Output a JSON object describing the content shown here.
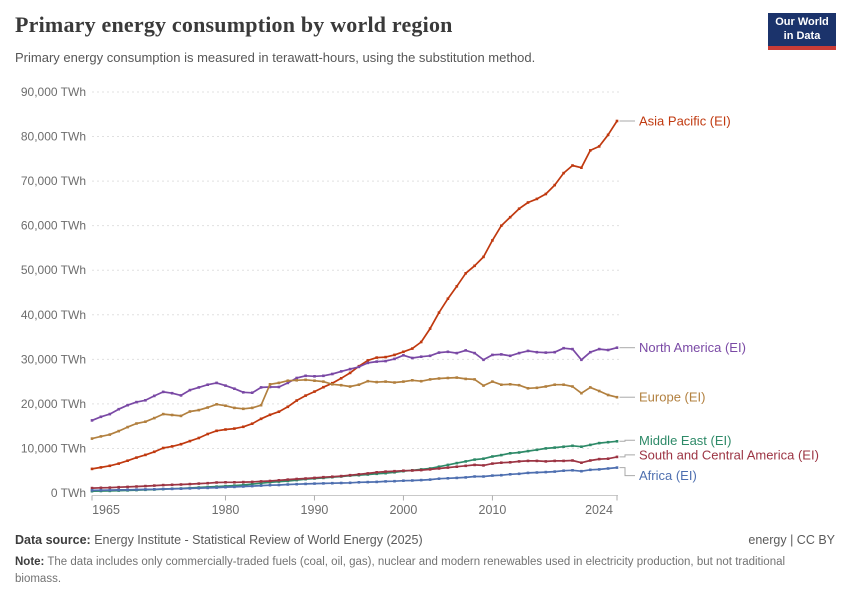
{
  "header": {
    "title": "Primary energy consumption by world region",
    "subtitle": "Primary energy consumption is measured in terawatt-hours, using the substitution method.",
    "logo_line1": "Our World",
    "logo_line2": "in Data",
    "logo_bg_color": "#1b336b",
    "logo_bar_color": "#c93c37"
  },
  "chart_data": {
    "type": "line",
    "title": "Primary energy consumption by world region",
    "unit": "TWh",
    "xlim": [
      1965,
      2024
    ],
    "ylim": [
      0,
      90000
    ],
    "grid": "dashed horizontal gridlines",
    "legend_position": "right of line ends",
    "xticks": [
      1965,
      1980,
      1990,
      2000,
      2010,
      2024
    ],
    "yticks": [
      0,
      10000,
      20000,
      30000,
      40000,
      50000,
      60000,
      70000,
      80000,
      90000
    ],
    "ytick_labels": [
      "0 TWh",
      "10,000 TWh",
      "20,000 TWh",
      "30,000 TWh",
      "40,000 TWh",
      "50,000 TWh",
      "60,000 TWh",
      "70,000 TWh",
      "80,000 TWh",
      "90,000 TWh"
    ],
    "years": [
      1965,
      1966,
      1967,
      1968,
      1969,
      1970,
      1971,
      1972,
      1973,
      1974,
      1975,
      1976,
      1977,
      1978,
      1979,
      1980,
      1981,
      1982,
      1983,
      1984,
      1985,
      1986,
      1987,
      1988,
      1989,
      1990,
      1991,
      1992,
      1993,
      1994,
      1995,
      1996,
      1997,
      1998,
      1999,
      2000,
      2001,
      2002,
      2003,
      2004,
      2005,
      2006,
      2007,
      2008,
      2009,
      2010,
      2011,
      2012,
      2013,
      2014,
      2015,
      2016,
      2017,
      2018,
      2019,
      2020,
      2021,
      2022,
      2023,
      2024
    ],
    "series": [
      {
        "name": "Asia Pacific (EI)",
        "color": "#C0390F",
        "label_dy": 0,
        "values": [
          5400,
          5750,
          6100,
          6600,
          7250,
          7950,
          8550,
          9250,
          10100,
          10450,
          10950,
          11650,
          12350,
          13250,
          13950,
          14250,
          14450,
          14850,
          15550,
          16650,
          17550,
          18250,
          19350,
          20750,
          21850,
          22750,
          23750,
          24650,
          25750,
          26950,
          28450,
          29750,
          30400,
          30500,
          31000,
          31700,
          32400,
          33900,
          36900,
          40500,
          43600,
          46400,
          49300,
          51000,
          53000,
          56700,
          60000,
          61900,
          63800,
          65200,
          66000,
          67100,
          69100,
          71800,
          73500,
          73000,
          76900,
          77800,
          80400,
          83500
        ]
      },
      {
        "name": "North America (EI)",
        "color": "#7A49A5",
        "label_dy": 0,
        "values": [
          16300,
          17100,
          17700,
          18800,
          19700,
          20400,
          20800,
          21800,
          22700,
          22400,
          21900,
          23100,
          23700,
          24300,
          24700,
          24100,
          23400,
          22600,
          22500,
          23700,
          23800,
          23800,
          24700,
          25800,
          26300,
          26200,
          26300,
          26700,
          27300,
          27800,
          28300,
          29200,
          29500,
          29600,
          30100,
          30900,
          30300,
          30600,
          30800,
          31500,
          31700,
          31400,
          32000,
          31400,
          29900,
          31000,
          31100,
          30800,
          31400,
          31900,
          31600,
          31500,
          31600,
          32500,
          32300,
          29900,
          31600,
          32300,
          32100,
          32600
        ]
      },
      {
        "name": "Europe (EI)",
        "color": "#B2803F",
        "label_dy": 0,
        "values": [
          12200,
          12700,
          13100,
          13900,
          14800,
          15600,
          16000,
          16800,
          17700,
          17500,
          17300,
          18300,
          18600,
          19200,
          19900,
          19600,
          19100,
          18900,
          19100,
          19700,
          24400,
          24700,
          25200,
          25300,
          25400,
          25200,
          25000,
          24400,
          24200,
          23900,
          24300,
          25100,
          24900,
          25000,
          24800,
          25000,
          25300,
          25100,
          25500,
          25700,
          25800,
          25900,
          25600,
          25500,
          24100,
          25000,
          24300,
          24400,
          24200,
          23500,
          23600,
          23900,
          24300,
          24300,
          23900,
          22400,
          23700,
          22900,
          22000,
          21500
        ]
      },
      {
        "name": "Middle East (EI)",
        "color": "#2E8A68",
        "label_dy": -1,
        "values": [
          400,
          440,
          480,
          530,
          580,
          640,
          710,
          790,
          880,
          960,
          1000,
          1120,
          1230,
          1340,
          1440,
          1550,
          1650,
          1800,
          2000,
          2200,
          2400,
          2550,
          2700,
          2900,
          3100,
          3250,
          3400,
          3550,
          3700,
          3900,
          4000,
          4150,
          4300,
          4450,
          4650,
          4900,
          5100,
          5300,
          5500,
          5900,
          6300,
          6700,
          7100,
          7500,
          7700,
          8200,
          8500,
          8900,
          9100,
          9400,
          9700,
          10000,
          10200,
          10400,
          10600,
          10400,
          10800,
          11200,
          11400,
          11600
        ]
      },
      {
        "name": "South and Central America (EI)",
        "color": "#9C3443",
        "label_dy": -2,
        "values": [
          1100,
          1160,
          1220,
          1300,
          1380,
          1470,
          1550,
          1650,
          1780,
          1850,
          1900,
          2000,
          2100,
          2200,
          2350,
          2400,
          2400,
          2450,
          2500,
          2600,
          2700,
          2850,
          3000,
          3150,
          3250,
          3400,
          3550,
          3650,
          3800,
          4000,
          4200,
          4400,
          4650,
          4800,
          4900,
          5000,
          5050,
          5150,
          5300,
          5500,
          5700,
          5900,
          6100,
          6300,
          6200,
          6600,
          6800,
          6900,
          7100,
          7200,
          7200,
          7100,
          7200,
          7200,
          7300,
          6800,
          7300,
          7600,
          7700,
          8100
        ]
      },
      {
        "name": "Africa (EI)",
        "color": "#4E6FB0",
        "label_dy": 8,
        "values": [
          600,
          620,
          650,
          690,
          720,
          760,
          800,
          840,
          890,
          930,
          970,
          1030,
          1080,
          1150,
          1220,
          1300,
          1380,
          1450,
          1550,
          1650,
          1750,
          1800,
          1900,
          1980,
          2050,
          2100,
          2150,
          2200,
          2250,
          2300,
          2400,
          2450,
          2500,
          2600,
          2650,
          2750,
          2800,
          2900,
          3000,
          3200,
          3300,
          3400,
          3500,
          3700,
          3700,
          3900,
          4000,
          4200,
          4300,
          4500,
          4600,
          4700,
          4800,
          5000,
          5100,
          4900,
          5200,
          5300,
          5500,
          5700
        ]
      }
    ]
  },
  "footer": {
    "datasource_label": "Data source:",
    "datasource_text": "Energy Institute - Statistical Review of World Energy (2025)",
    "license": "energy | CC BY",
    "note_label": "Note:",
    "note_text": "The data includes only commercially-traded fuels (coal, oil, gas), nuclear and modern renewables used in electricity production, but not traditional biomass."
  }
}
